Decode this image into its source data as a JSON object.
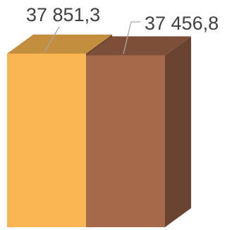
{
  "chart_data": {
    "type": "bar",
    "style": "3d-columns",
    "categories": [
      "",
      ""
    ],
    "series": [
      {
        "values": [
          37851.3,
          37456.8
        ]
      }
    ],
    "data_labels": [
      "37 851,3",
      "37 456,8"
    ],
    "colors": {
      "bars": [
        "#fbb654",
        "#a66a4a"
      ],
      "bar_tops": [
        "#c38f3f",
        "#7d4e38"
      ],
      "bar_sides": [
        "#6b4331"
      ],
      "label_text": "#404040",
      "leader_line": "#a6a6a6"
    },
    "ylim": [
      0,
      40000
    ],
    "grid": false,
    "legend": "none"
  }
}
